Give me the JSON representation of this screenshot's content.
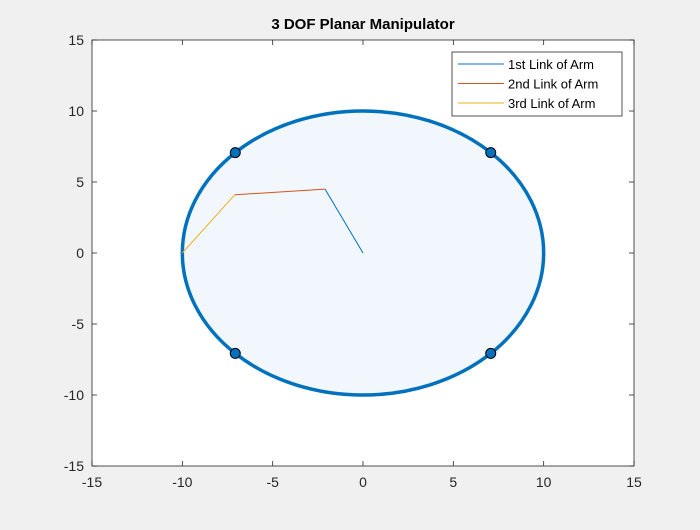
{
  "chart_data": {
    "type": "line",
    "title": "3 DOF Planar Manipulator",
    "xlabel": "",
    "ylabel": "",
    "xlim": [
      -15,
      15
    ],
    "ylim": [
      -15,
      15
    ],
    "x_ticks": [
      -15,
      -10,
      -5,
      0,
      5,
      10,
      15
    ],
    "y_ticks": [
      -15,
      -10,
      -5,
      0,
      5,
      10,
      15
    ],
    "grid": false,
    "legend_position": "top-right",
    "workspace": {
      "center": [
        0,
        0
      ],
      "radius": 10,
      "edge_color": "#0072bd",
      "fill_color": "#f1f7fc"
    },
    "markers": {
      "points": [
        {
          "x": -7.07,
          "y": 7.07
        },
        {
          "x": 7.07,
          "y": 7.07
        },
        {
          "x": -7.07,
          "y": -7.07
        },
        {
          "x": 7.07,
          "y": -7.07
        }
      ],
      "fill_color": "#0072bd",
      "edge_color": "#000000"
    },
    "series": [
      {
        "name": "1st Link of Arm",
        "color": "#0072bd",
        "x": [
          0,
          -2.1
        ],
        "y": [
          0,
          4.5
        ]
      },
      {
        "name": "2nd Link of Arm",
        "color": "#d95319",
        "x": [
          -2.1,
          -7.1
        ],
        "y": [
          4.5,
          4.1
        ]
      },
      {
        "name": "3rd Link of Arm",
        "color": "#edb120",
        "x": [
          -7.1,
          -10.0
        ],
        "y": [
          4.1,
          0
        ]
      }
    ]
  }
}
